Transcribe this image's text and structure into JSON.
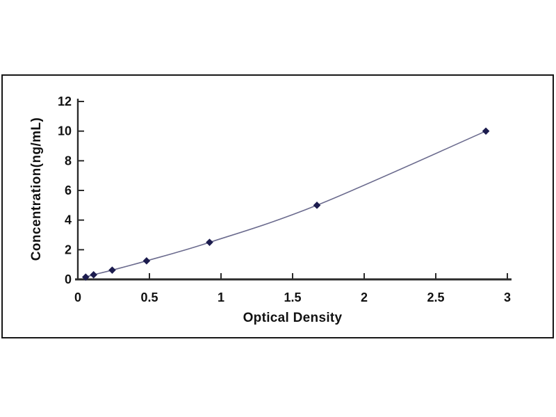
{
  "figure": {
    "background_color": "#ffffff",
    "frame_border_color": "#161616"
  },
  "chart_data": {
    "type": "line",
    "xlabel": "Optical Density",
    "ylabel": "Concentration(ng/mL)",
    "x": [
      0.055,
      0.11,
      0.24,
      0.48,
      0.92,
      1.67,
      2.85
    ],
    "y": [
      0.156,
      0.313,
      0.625,
      1.25,
      2.5,
      5,
      10
    ],
    "xlim": [
      0,
      3
    ],
    "ylim": [
      0,
      12
    ],
    "x_ticks": [
      0,
      0.5,
      1,
      1.5,
      2,
      2.5,
      3
    ],
    "x_tick_labels": [
      "0",
      "0.5",
      "1",
      "1.5",
      "2",
      "2.5",
      "3"
    ],
    "y_ticks": [
      0,
      2,
      4,
      6,
      8,
      10,
      12
    ],
    "y_tick_labels": [
      "0",
      "2",
      "4",
      "6",
      "8",
      "10",
      "12"
    ],
    "grid": false,
    "legend": "none",
    "marker": "diamond",
    "line_color": "#6b6b8e",
    "marker_color": "#1c1c4e",
    "axis_color": "#2b2b2b",
    "text_color": "#111111"
  }
}
